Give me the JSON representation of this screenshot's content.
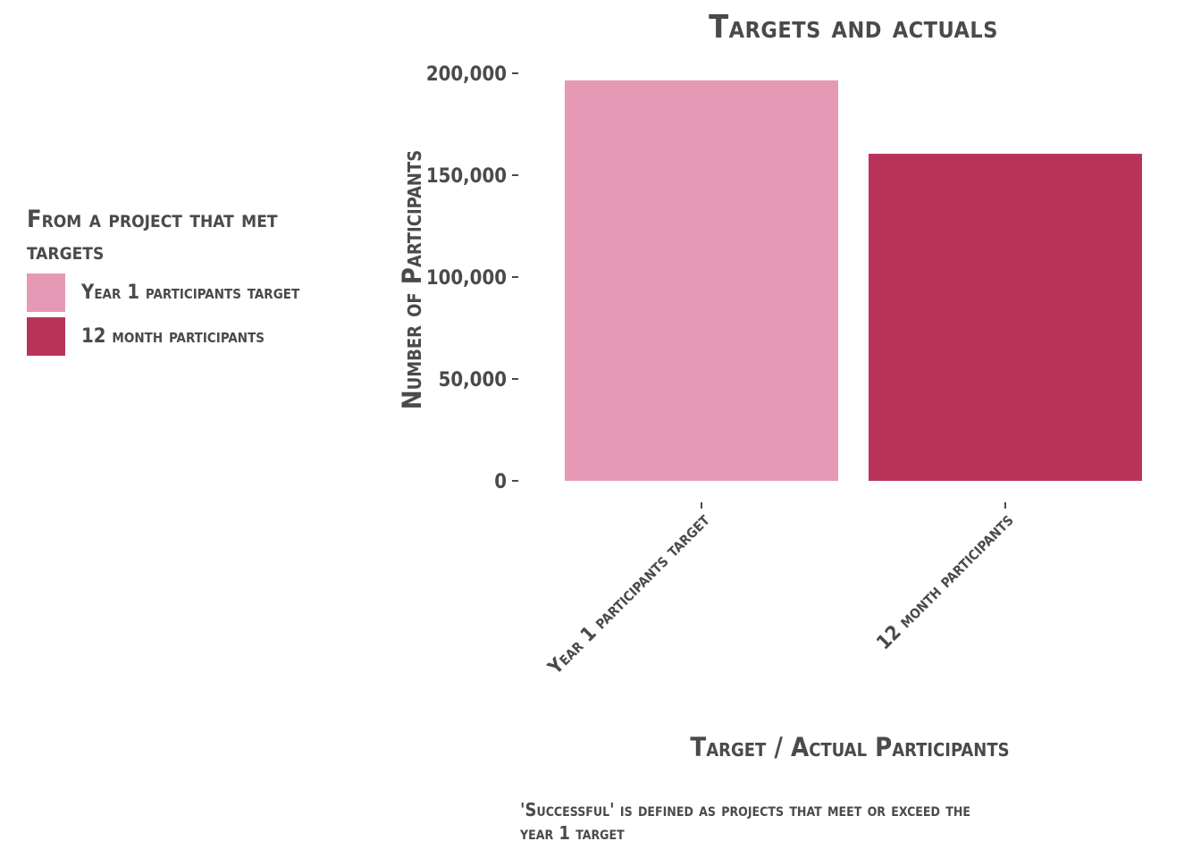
{
  "chart_data": {
    "type": "bar",
    "title": "Targets and actuals",
    "xlabel": "Target / Actual Participants",
    "ylabel": "Number of Participants",
    "categories": [
      "Year 1 participants target",
      "12 month participants"
    ],
    "values": [
      196500,
      160500
    ],
    "colors": [
      "#e599b4",
      "#b8335a"
    ],
    "ylim": [
      0,
      200000
    ],
    "yticks": [
      0,
      50000,
      100000,
      150000,
      200000
    ],
    "ytick_labels": [
      "0",
      "50,000",
      "100,000",
      "150,000",
      "200,000"
    ],
    "grid": false,
    "legend_position": "left"
  },
  "legend": {
    "title": "From a project that met targets",
    "items": [
      {
        "label": "Year 1 participants target",
        "color": "#e599b4"
      },
      {
        "label": "12 month participants",
        "color": "#b8335a"
      }
    ]
  },
  "caption": "'Successful' is defined as projects that meet or exceed the year 1 target"
}
